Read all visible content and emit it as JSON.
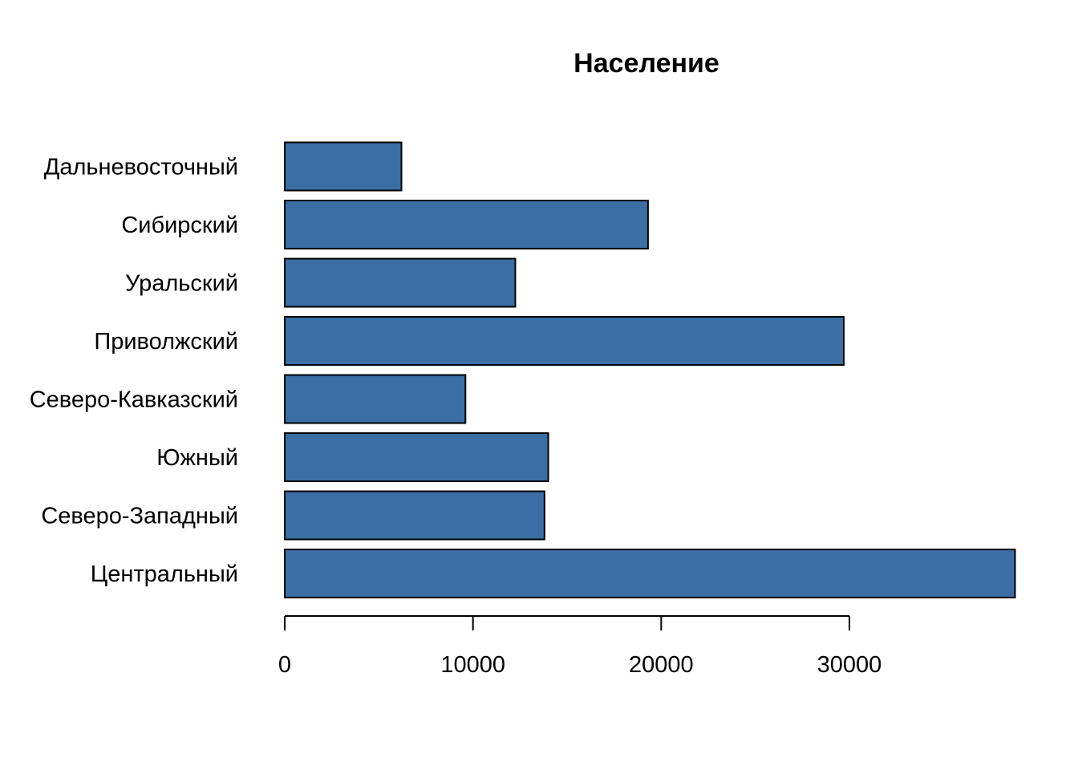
{
  "chart_data": {
    "type": "bar",
    "orientation": "horizontal",
    "title": "Население",
    "xlabel": "",
    "ylabel": "",
    "categories": [
      "Центральный",
      "Северо-Западный",
      "Южный",
      "Северо-Кавказский",
      "Приволжский",
      "Уральский",
      "Сибирский",
      "Дальневосточный"
    ],
    "values": [
      38800,
      13800,
      14000,
      9600,
      29700,
      12250,
      19300,
      6200
    ],
    "xlim": [
      0,
      39000
    ],
    "xticks": [
      0,
      10000,
      20000,
      30000
    ],
    "xtick_labels": [
      "0",
      "10000",
      "20000",
      "30000"
    ],
    "bar_color": "#3A6EA5",
    "grid": false,
    "legend": "none"
  }
}
